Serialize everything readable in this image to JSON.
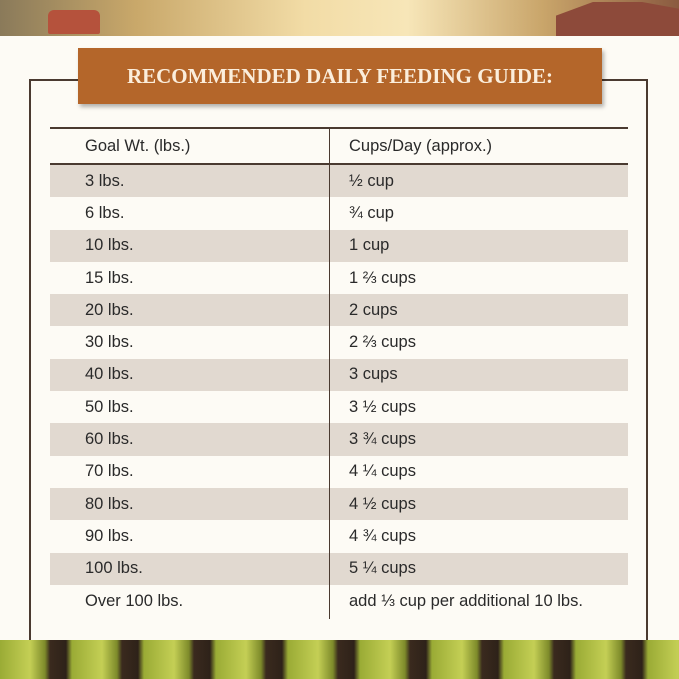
{
  "title": "RECOMMENDED DAILY FEEDING GUIDE:",
  "headers": [
    "Goal Wt. (lbs.)",
    "Cups/Day (approx.)"
  ],
  "rows": [
    [
      "3 lbs.",
      "½ cup"
    ],
    [
      "6 lbs.",
      "¾ cup"
    ],
    [
      "10 lbs.",
      "1 cup"
    ],
    [
      "15 lbs.",
      "1 ⅔ cups"
    ],
    [
      "20 lbs.",
      "2 cups"
    ],
    [
      "30 lbs.",
      "2 ⅔ cups"
    ],
    [
      "40 lbs.",
      "3 cups"
    ],
    [
      "50 lbs.",
      "3 ½ cups"
    ],
    [
      "60 lbs.",
      "3 ¾ cups"
    ],
    [
      "70 lbs.",
      "4 ¼ cups"
    ],
    [
      "80 lbs.",
      "4 ½ cups"
    ],
    [
      "90 lbs.",
      "4 ¾ cups"
    ],
    [
      "100 lbs.",
      "5 ¼ cups"
    ],
    [
      "Over 100 lbs.",
      "add ⅓ cup per additional 10 lbs."
    ]
  ],
  "colors": {
    "banner": "#b4662a",
    "shade": "#e1d9d0",
    "background": "#fdfbf5"
  }
}
